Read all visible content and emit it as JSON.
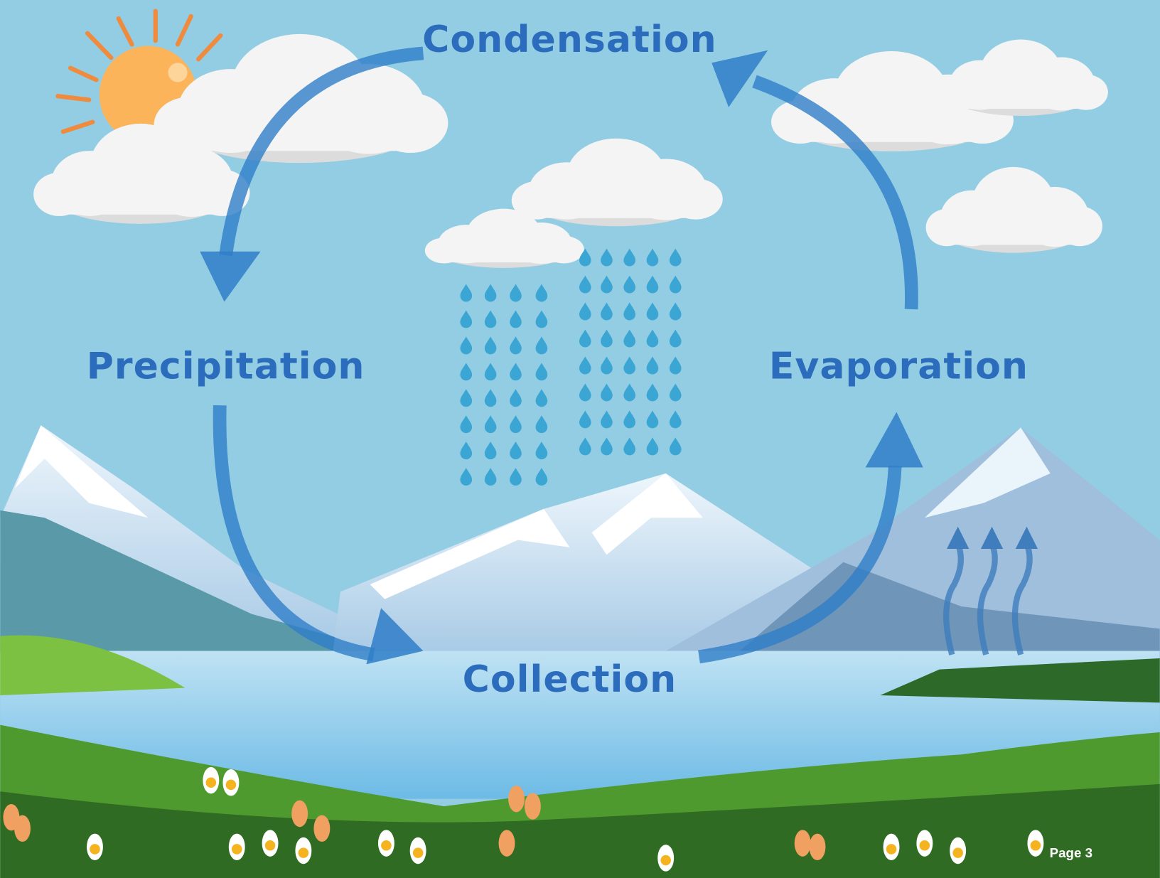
{
  "labels": {
    "top": "Condensation",
    "left": "Precipitation",
    "right": "Evaporation",
    "bottom": "Collection"
  },
  "footer": {
    "page": "Page 3"
  }
}
